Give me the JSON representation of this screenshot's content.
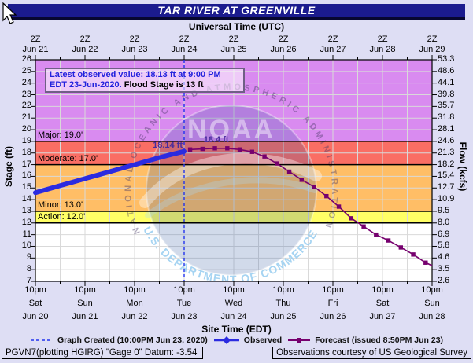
{
  "window": {
    "title": "TAR RIVER AT GREENVILLE"
  },
  "axes": {
    "top": {
      "title": "Universal Time (UTC)",
      "tick": "2Z",
      "dates": [
        "Jun 21",
        "Jun 22",
        "Jun 23",
        "Jun 24",
        "Jun 25",
        "Jun 26",
        "Jun 27",
        "Jun 28",
        "Jun 29"
      ]
    },
    "bottom": {
      "title": "Site Time (EDT)",
      "tick": "10pm",
      "days": [
        "Sat",
        "Sun",
        "Mon",
        "Tue",
        "Wed",
        "Thu",
        "Fri",
        "Sat",
        "Sun"
      ],
      "dates": [
        "Jun 20",
        "Jun 21",
        "Jun 22",
        "Jun 23",
        "Jun 24",
        "Jun 25",
        "Jun 26",
        "Jun 27",
        "Jun 28"
      ]
    },
    "left": {
      "title": "Stage (ft)",
      "ticks": [
        "26",
        "25",
        "24",
        "23",
        "22",
        "21",
        "20",
        "19",
        "18",
        "17",
        "16",
        "15",
        "14",
        "13",
        "12",
        "11",
        "10",
        "9",
        "8",
        "7"
      ]
    },
    "right": {
      "title": "Flow (kcfs)",
      "ticks": [
        "53.3",
        "48.6",
        "44.1",
        "39.8",
        "35.7",
        "31.8",
        "28.1",
        "24.6",
        "21.3",
        "18.2",
        "15.4",
        "12.7",
        "10.9",
        "9.5",
        "8.0",
        "6.9",
        "5.8",
        "4.6",
        "3.5",
        "2.6"
      ]
    }
  },
  "annotation": {
    "line1": "Latest observed value: 18.13 ft at 9:00 PM",
    "line2_blue": "EDT 23-Jun-2020.",
    "line2_black": " Flood Stage is 13 ft"
  },
  "zones": [
    {
      "name": "major",
      "label": "Major: 19.0'",
      "from": 19,
      "to": 26,
      "color": "#d98bf0"
    },
    {
      "name": "moderate",
      "label": "Moderate: 17.0'",
      "from": 17,
      "to": 19,
      "color": "#fa6e64"
    },
    {
      "name": "minor",
      "label": "Minor: 13.0'",
      "from": 13,
      "to": 17,
      "color": "#ffbe66"
    },
    {
      "name": "action",
      "label": "Action: 12.0'",
      "from": 12,
      "to": 13,
      "color": "#ffff66"
    },
    {
      "name": "normal",
      "label": "",
      "from": 7,
      "to": 12,
      "color": "#ffffff"
    }
  ],
  "point_labels": [
    {
      "text": "18.14 ft",
      "x_days": 3.0,
      "stage": 18.14,
      "align": "right"
    },
    {
      "text": "18.4 ft",
      "x_days": 3.25,
      "stage": 18.4,
      "align": "left"
    }
  ],
  "legend": {
    "created": "Graph Created (10:00PM Jun 23, 2020)",
    "observed": "Observed",
    "forecast": "Forecast (issued 8:50PM Jun 23)"
  },
  "footer": {
    "left": "PGVN7(plotting HGIRG) \"Gage 0\" Datum: -3.54'",
    "right": "Observations courtesy of US Geological Survey"
  },
  "watermark": {
    "noaa": "NOAA",
    "top_text": "NATIONAL OCEANIC AND ATMOSPHERIC ADMINISTRATION",
    "bottom_text": "U.S. DEPARTMENT OF COMMERCE"
  },
  "colors": {
    "title_bar": "#1b1b8e",
    "background": "#dedef4",
    "observed": "#2b2be0",
    "forecast": "#76006e",
    "created_line": "#2233ee",
    "gridline": "#d9d9d9",
    "boundary": "#000000"
  },
  "chart_data": {
    "type": "line",
    "title": "TAR RIVER AT GREENVILLE",
    "x_axis": {
      "top_label": "Universal Time (UTC)",
      "bottom_label": "Site Time (EDT)",
      "domain_days": [
        0,
        8
      ],
      "start": "10pm EDT Sat Jun 20 (2Z Jun 21)",
      "end": "10pm EDT Sun Jun 28 (2Z Jun 29)",
      "gridline_interval_days": 0.5
    },
    "y_axis": {
      "left_label": "Stage (ft)",
      "right_label": "Flow (kcfs)",
      "ylim": [
        7,
        26
      ],
      "stage_ticks": [
        26,
        25,
        24,
        23,
        22,
        21,
        20,
        19,
        18,
        17,
        16,
        15,
        14,
        13,
        12,
        11,
        10,
        9,
        8,
        7
      ],
      "flow_ticks": [
        53.3,
        48.6,
        44.1,
        39.8,
        35.7,
        31.8,
        28.1,
        24.6,
        21.3,
        18.2,
        15.4,
        12.7,
        10.9,
        9.5,
        8.0,
        6.9,
        5.8,
        4.6,
        3.5,
        2.6
      ]
    },
    "flood_categories_ft": {
      "action": 12.0,
      "minor": 13.0,
      "moderate": 17.0,
      "major": 19.0
    },
    "flood_stage_ft": 13,
    "latest_observed": {
      "stage_ft": 18.13,
      "time": "9:00 PM EDT 23-Jun-2020"
    },
    "forecast_crest_ft": 18.4,
    "graph_created_x_days": 3.0,
    "series": [
      {
        "name": "Observed",
        "color": "#2b2be0",
        "x_days": [
          0,
          0.25,
          0.5,
          0.75,
          1.0,
          1.25,
          1.5,
          1.75,
          2.0,
          2.25,
          2.5,
          2.75,
          3.0
        ],
        "stage_ft": [
          14.6,
          14.9,
          15.2,
          15.5,
          15.8,
          16.1,
          16.4,
          16.7,
          17.0,
          17.3,
          17.6,
          17.88,
          18.14
        ]
      },
      {
        "name": "Forecast",
        "color": "#76006e",
        "x_days": [
          3.12,
          3.37,
          3.62,
          3.87,
          4.12,
          4.37,
          4.62,
          4.87,
          5.12,
          5.37,
          5.62,
          5.87,
          6.12,
          6.37,
          6.62,
          6.87,
          7.12,
          7.37,
          7.62,
          7.87
        ],
        "stage_ft": [
          18.3,
          18.35,
          18.4,
          18.4,
          18.3,
          18.1,
          17.7,
          17.1,
          16.4,
          15.7,
          15.1,
          14.3,
          13.4,
          12.4,
          11.7,
          11.0,
          10.5,
          9.9,
          9.3,
          8.6
        ],
        "tail": {
          "x_days": 8.0,
          "stage_ft": 8.35
        }
      }
    ]
  }
}
